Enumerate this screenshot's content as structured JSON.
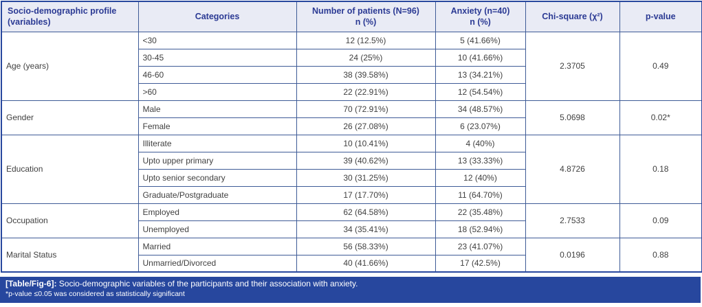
{
  "table": {
    "headers": {
      "variables": "Socio-demographic profile (variables)",
      "categories": "Categories",
      "patients_label": "Number of patients (N=96)",
      "patients_sub": "n (%)",
      "anxiety_label": "Anxiety (n=40)",
      "anxiety_sub": "n (%)",
      "chi_square": "Chi-square (χ²)",
      "p_value": "p-value"
    },
    "groups": [
      {
        "variable": "Age (years)",
        "chi_square": "2.3705",
        "p_value": "0.49",
        "rows": [
          {
            "category": "<30",
            "patients": "12 (12.5%)",
            "anxiety": "5 (41.66%)"
          },
          {
            "category": "30-45",
            "patients": "24 (25%)",
            "anxiety": "10 (41.66%)"
          },
          {
            "category": "46-60",
            "patients": "38 (39.58%)",
            "anxiety": "13 (34.21%)"
          },
          {
            "category": ">60",
            "patients": "22 (22.91%)",
            "anxiety": "12 (54.54%)"
          }
        ]
      },
      {
        "variable": "Gender",
        "chi_square": "5.0698",
        "p_value": "0.02*",
        "rows": [
          {
            "category": "Male",
            "patients": "70 (72.91%)",
            "anxiety": "34 (48.57%)"
          },
          {
            "category": "Female",
            "patients": "26 (27.08%)",
            "anxiety": "6 (23.07%)"
          }
        ]
      },
      {
        "variable": "Education",
        "chi_square": "4.8726",
        "p_value": "0.18",
        "rows": [
          {
            "category": "Illiterate",
            "patients": "10 (10.41%)",
            "anxiety": "4 (40%)"
          },
          {
            "category": "Upto upper primary",
            "patients": "39 (40.62%)",
            "anxiety": "13 (33.33%)"
          },
          {
            "category": "Upto senior secondary",
            "patients": "30 (31.25%)",
            "anxiety": "12 (40%)"
          },
          {
            "category": "Graduate/Postgraduate",
            "patients": "17 (17.70%)",
            "anxiety": "11 (64.70%)"
          }
        ]
      },
      {
        "variable": "Occupation",
        "chi_square": "2.7533",
        "p_value": "0.09",
        "rows": [
          {
            "category": "Employed",
            "patients": "62 (64.58%)",
            "anxiety": "22 (35.48%)"
          },
          {
            "category": "Unemployed",
            "patients": "34 (35.41%)",
            "anxiety": "18 (52.94%)"
          }
        ]
      },
      {
        "variable": "Marital Status",
        "chi_square": "0.0196",
        "p_value": "0.88",
        "rows": [
          {
            "category": "Married",
            "patients": "56 (58.33%)",
            "anxiety": "23 (41.07%)"
          },
          {
            "category": "Unmarried/Divorced",
            "patients": "40 (41.66%)",
            "anxiety": "17 (42.5%)"
          }
        ]
      }
    ]
  },
  "footer": {
    "caption_label": "[Table/Fig-6]:",
    "caption_text": " Socio-demographic variables of the participants and their association with anxiety.",
    "note": "*p-value ≤0.05 was considered as statistically significant"
  },
  "colors": {
    "header_bg": "#E9EBF5",
    "header_text": "#2B3A94",
    "body_text": "#3F3F3F",
    "inner_border": "#3D5A96",
    "outer_border": "#27479E",
    "footer_bg": "#27479E",
    "footer_text": "#FFFFFF"
  }
}
